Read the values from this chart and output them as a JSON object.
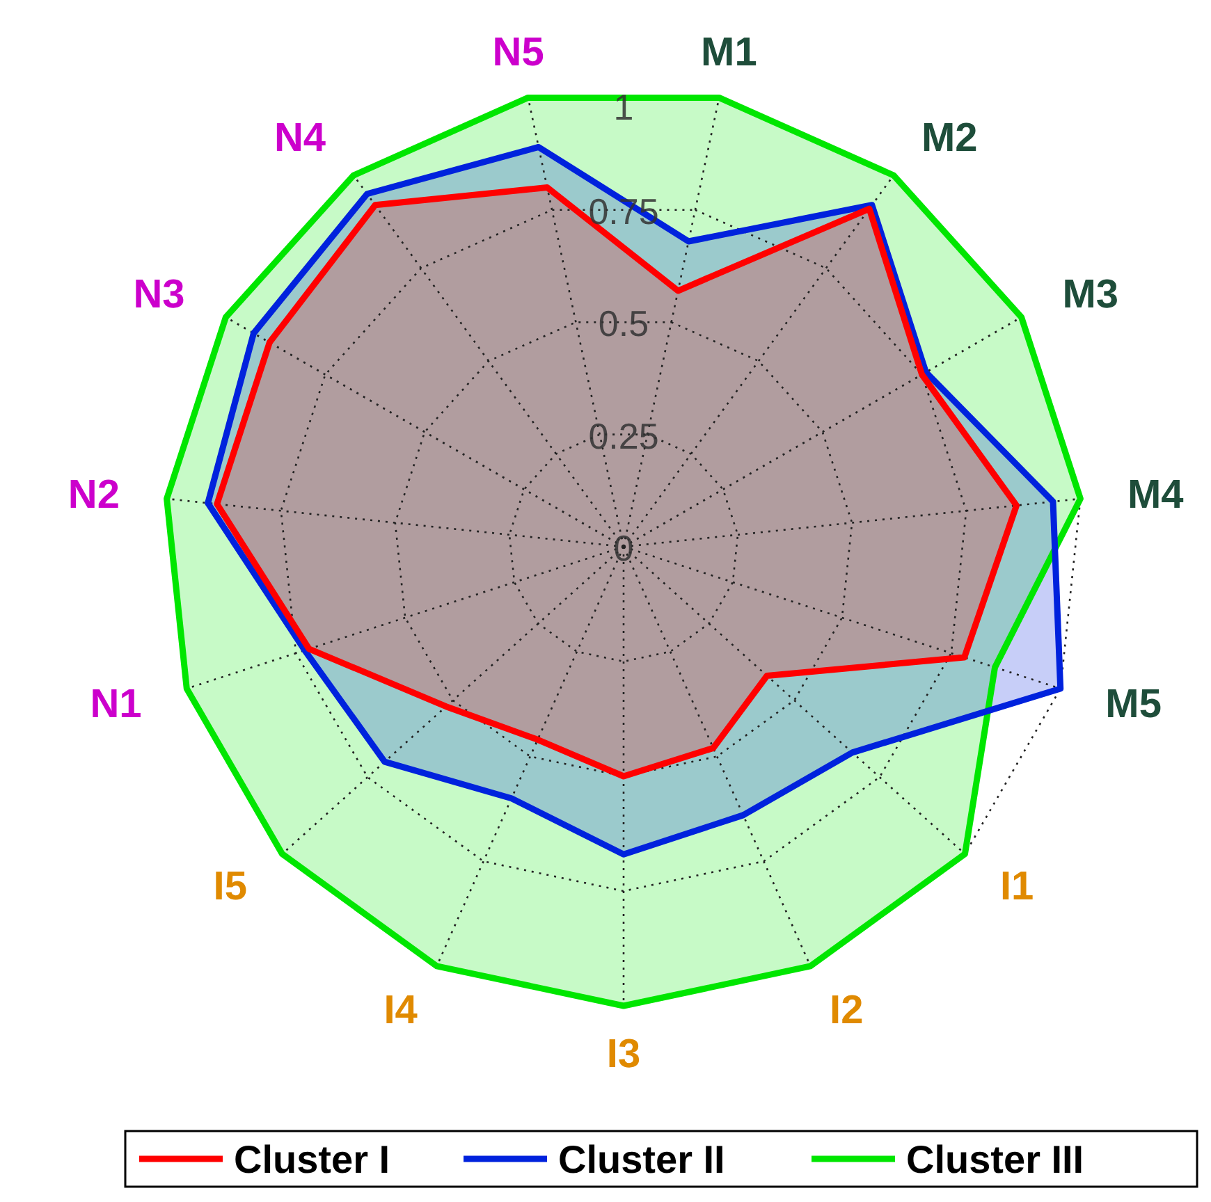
{
  "chart_data": {
    "type": "radar",
    "categories": [
      "M1",
      "M2",
      "M3",
      "M4",
      "M5",
      "I1",
      "I2",
      "I3",
      "I4",
      "I5",
      "N1",
      "N2",
      "N3",
      "N4",
      "N5"
    ],
    "series": [
      {
        "name": "Cluster I",
        "color": "#ff0000",
        "values": [
          0.57,
          0.91,
          0.75,
          0.86,
          0.78,
          0.42,
          0.48,
          0.5,
          0.46,
          0.52,
          0.72,
          0.89,
          0.89,
          0.92,
          0.8
        ]
      },
      {
        "name": "Cluster II",
        "color": "#0022dd",
        "values": [
          0.68,
          0.92,
          0.76,
          0.94,
          1.0,
          0.67,
          0.64,
          0.67,
          0.6,
          0.7,
          0.73,
          0.91,
          0.93,
          0.95,
          0.89
        ]
      },
      {
        "name": "Cluster III",
        "color": "#00e600",
        "values": [
          1,
          1,
          1,
          1,
          0.85,
          1,
          1,
          1,
          1,
          1,
          1,
          1,
          1,
          1,
          1
        ]
      }
    ],
    "ylim": [
      0,
      1
    ],
    "yticks": [
      0,
      0.25,
      0.5,
      0.75,
      1
    ],
    "grid": true,
    "legend": "bottom"
  }
}
